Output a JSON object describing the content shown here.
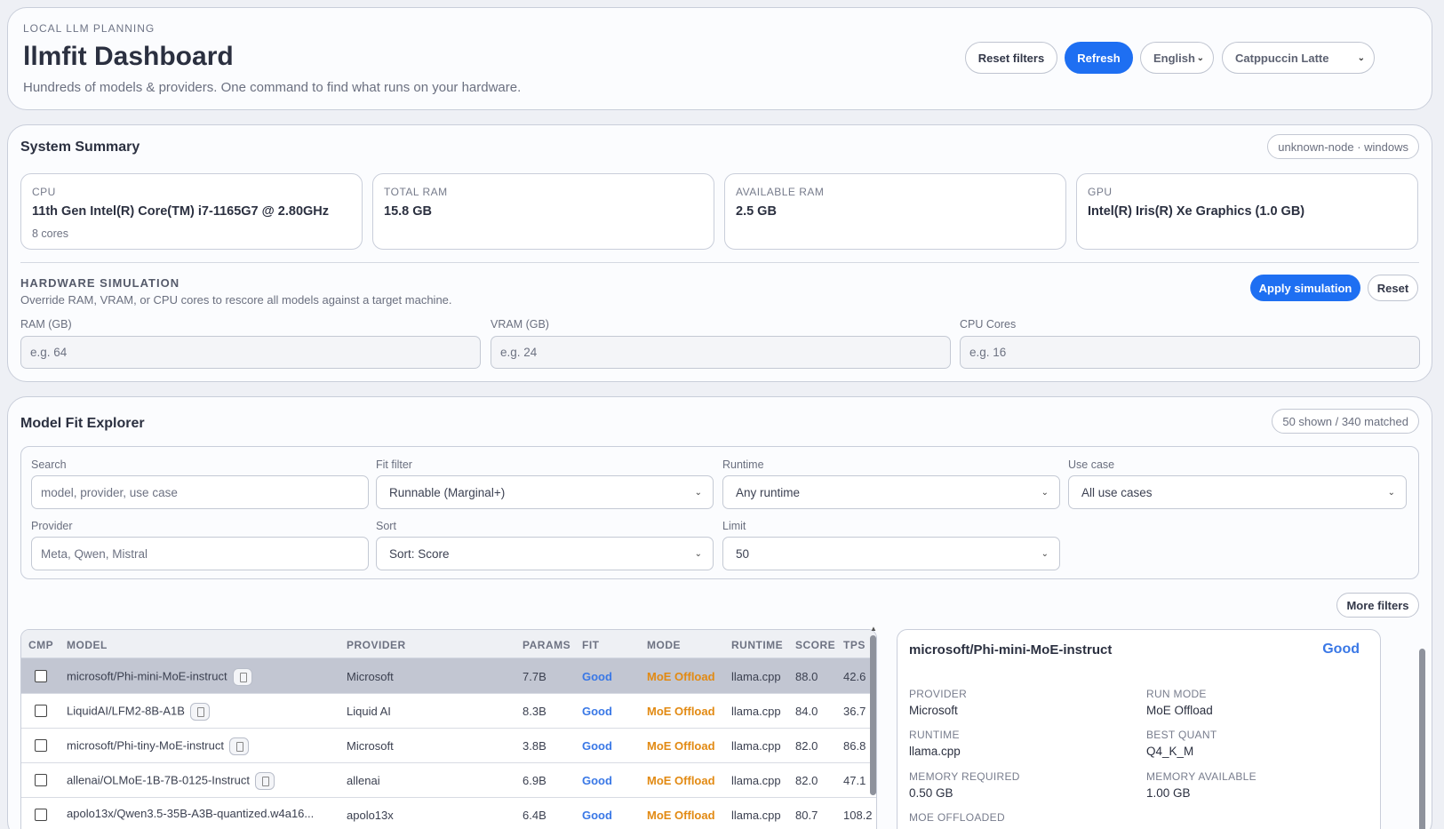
{
  "header": {
    "eyebrow": "LOCAL LLM PLANNING",
    "title": "llmfit Dashboard",
    "subtitle": "Hundreds of models & providers. One command to find what runs on your hardware.",
    "reset_filters": "Reset filters",
    "refresh": "Refresh",
    "language": "English",
    "theme": "Catppuccin Latte"
  },
  "system": {
    "title": "System Summary",
    "node_badge": "unknown-node · windows",
    "cpu": {
      "label": "CPU",
      "value": "11th Gen Intel(R) Core(TM) i7-1165G7 @ 2.80GHz",
      "sub": "8 cores"
    },
    "total_ram": {
      "label": "TOTAL RAM",
      "value": "15.8 GB"
    },
    "available_ram": {
      "label": "AVAILABLE RAM",
      "value": "2.5 GB"
    },
    "gpu": {
      "label": "GPU",
      "value": "Intel(R) Iris(R) Xe Graphics (1.0 GB)"
    }
  },
  "simulation": {
    "title": "HARDWARE SIMULATION",
    "subtitle": "Override RAM, VRAM, or CPU cores to rescore all models against a target machine.",
    "apply": "Apply simulation",
    "reset": "Reset",
    "ram_label": "RAM (GB)",
    "ram_placeholder": "e.g. 64",
    "vram_label": "VRAM (GB)",
    "vram_placeholder": "e.g. 24",
    "cores_label": "CPU Cores",
    "cores_placeholder": "e.g. 16"
  },
  "explorer": {
    "title": "Model Fit Explorer",
    "count_badge": "50 shown / 340 matched",
    "search_label": "Search",
    "search_placeholder": "model, provider, use case",
    "fit_label": "Fit filter",
    "fit_value": "Runnable (Marginal+)",
    "runtime_label": "Runtime",
    "runtime_value": "Any runtime",
    "usecase_label": "Use case",
    "usecase_value": "All use cases",
    "provider_label": "Provider",
    "provider_placeholder": "Meta, Qwen, Mistral",
    "sort_label": "Sort",
    "sort_value": "Sort: Score",
    "limit_label": "Limit",
    "limit_value": "50",
    "more_filters": "More filters"
  },
  "table": {
    "headers": {
      "cmp": "CMP",
      "model": "MODEL",
      "provider": "PROVIDER",
      "params": "PARAMS",
      "fit": "FIT",
      "mode": "MODE",
      "runtime": "RUNTIME",
      "score": "SCORE",
      "tps": "TPS"
    },
    "rows": [
      {
        "model": "microsoft/Phi-mini-MoE-instruct",
        "provider": "Microsoft",
        "params": "7.7B",
        "fit": "Good",
        "mode": "MoE Offload",
        "runtime": "llama.cpp",
        "score": "88.0",
        "tps": "42.6"
      },
      {
        "model": "LiquidAI/LFM2-8B-A1B",
        "provider": "Liquid AI",
        "params": "8.3B",
        "fit": "Good",
        "mode": "MoE Offload",
        "runtime": "llama.cpp",
        "score": "84.0",
        "tps": "36.7"
      },
      {
        "model": "microsoft/Phi-tiny-MoE-instruct",
        "provider": "Microsoft",
        "params": "3.8B",
        "fit": "Good",
        "mode": "MoE Offload",
        "runtime": "llama.cpp",
        "score": "82.0",
        "tps": "86.8"
      },
      {
        "model": "allenai/OLMoE-1B-7B-0125-Instruct",
        "provider": "allenai",
        "params": "6.9B",
        "fit": "Good",
        "mode": "MoE Offload",
        "runtime": "llama.cpp",
        "score": "82.0",
        "tps": "47.1"
      },
      {
        "model": "apolo13x/Qwen3.5-35B-A3B-quantized.w4a16...",
        "provider": "apolo13x",
        "params": "6.4B",
        "fit": "Good",
        "mode": "MoE Offload",
        "runtime": "llama.cpp",
        "score": "80.7",
        "tps": "108.2"
      }
    ]
  },
  "detail": {
    "title": "microsoft/Phi-mini-MoE-instruct",
    "fit": "Good",
    "provider_label": "PROVIDER",
    "provider": "Microsoft",
    "run_mode_label": "RUN MODE",
    "run_mode": "MoE Offload",
    "runtime_label": "RUNTIME",
    "runtime": "llama.cpp",
    "best_quant_label": "BEST QUANT",
    "best_quant": "Q4_K_M",
    "mem_req_label": "MEMORY REQUIRED",
    "mem_req": "0.50 GB",
    "mem_avail_label": "MEMORY AVAILABLE",
    "mem_avail": "1.00 GB",
    "moe_label": "MOE OFFLOADED"
  }
}
